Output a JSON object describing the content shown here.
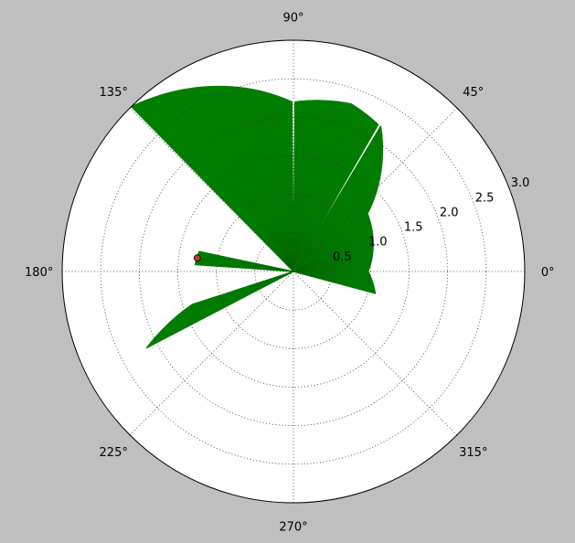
{
  "chart_data": {
    "type": "polar",
    "angle_unit": "degrees",
    "rlim": [
      0,
      3.0
    ],
    "grid": true,
    "background": "#bfbfbf",
    "plot_background": "#ffffff",
    "angular_ticks": [
      {
        "angle": 0,
        "label": "0°"
      },
      {
        "angle": 45,
        "label": "45°"
      },
      {
        "angle": 90,
        "label": "90°"
      },
      {
        "angle": 135,
        "label": "135°"
      },
      {
        "angle": 180,
        "label": "180°"
      },
      {
        "angle": 225,
        "label": "225°"
      },
      {
        "angle": 270,
        "label": "270°"
      },
      {
        "angle": 315,
        "label": "315°"
      }
    ],
    "radial_ticks": [
      {
        "r": 0.5,
        "label": "0.5"
      },
      {
        "r": 1.0,
        "label": "1.0"
      },
      {
        "r": 1.5,
        "label": "1.5"
      },
      {
        "r": 2.0,
        "label": "2.0"
      },
      {
        "r": 2.5,
        "label": "2.5"
      },
      {
        "r": 3.0,
        "label": "3.0"
      }
    ],
    "series": [
      {
        "color": "#008000",
        "style": "filled-wedge-lines",
        "wedges": [
          {
            "from_angle": -15,
            "to_angle": 0,
            "r_from": 1.1,
            "r_to": 0.97
          },
          {
            "from_angle": 0,
            "to_angle": 38,
            "r_from": 0.97,
            "r_to": 1.22
          },
          {
            "from_angle": 38,
            "to_angle": 59,
            "r_from": 1.22,
            "r_to": 2.2
          },
          {
            "from_angle": 60,
            "to_angle": 71,
            "r_from": 2.2,
            "r_to": 2.3
          },
          {
            "from_angle": 71,
            "to_angle": 89.5,
            "r_from": 2.3,
            "r_to": 2.2
          },
          {
            "from_angle": 90.5,
            "to_angle": 134.5,
            "r_from": 2.2,
            "r_to": 3.0
          },
          {
            "from_angle": 168,
            "to_angle": 176,
            "r_from": 1.25,
            "r_to": 1.28
          },
          {
            "from_angle": 198,
            "to_angle": 207.5,
            "r_from": 1.38,
            "r_to": 2.15
          }
        ]
      }
    ],
    "markers": [
      {
        "angle": 172,
        "r": 1.26,
        "color": "#c0392b"
      }
    ]
  }
}
